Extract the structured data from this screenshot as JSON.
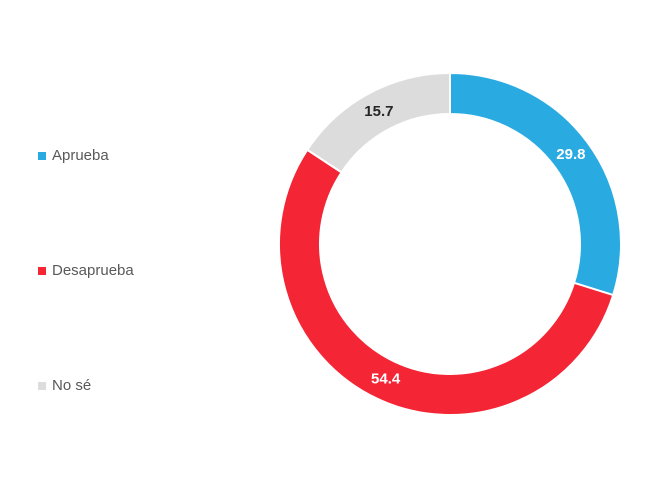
{
  "chart_data": {
    "type": "donut",
    "categories": [
      "Aprueba",
      "Desaprueba",
      "No sé"
    ],
    "values": [
      29.8,
      54.4,
      15.7
    ],
    "colors": [
      "#29abe2",
      "#f42534",
      "#dcdcdc"
    ],
    "label_colors": [
      "#ffffff",
      "#ffffff",
      "#262626"
    ],
    "legend": "left"
  }
}
